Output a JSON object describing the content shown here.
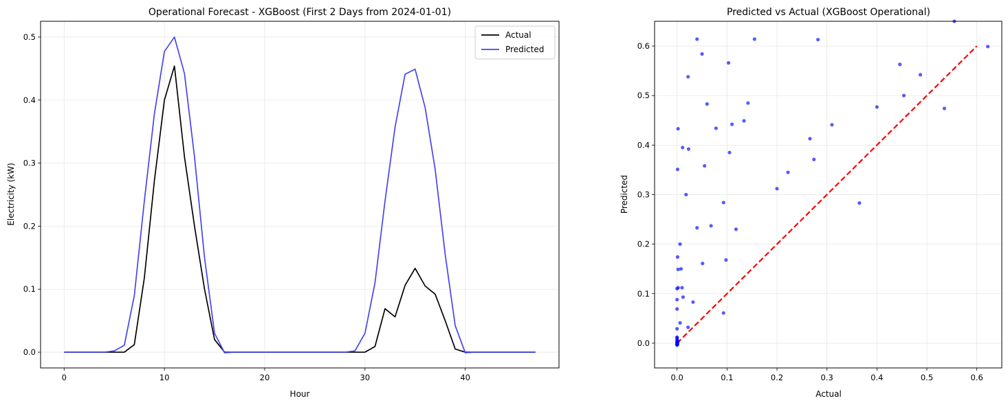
{
  "chart_data": [
    {
      "type": "line",
      "title": "Operational Forecast - XGBoost (First 2 Days from 2024-01-01)",
      "xlabel": "Hour",
      "ylabel": "Electricity (kW)",
      "xlim": [
        -2.35,
        49.35
      ],
      "ylim": [
        -0.025,
        0.525
      ],
      "xticks": [
        0,
        10,
        20,
        30,
        40
      ],
      "yticks": [
        0.0,
        0.1,
        0.2,
        0.3,
        0.4,
        0.5
      ],
      "grid": true,
      "legend": "top-right",
      "x": [
        0,
        1,
        2,
        3,
        4,
        5,
        6,
        7,
        8,
        9,
        10,
        11,
        12,
        13,
        14,
        15,
        16,
        17,
        18,
        19,
        20,
        21,
        22,
        23,
        24,
        25,
        26,
        27,
        28,
        29,
        30,
        31,
        32,
        33,
        34,
        35,
        36,
        37,
        38,
        39,
        40,
        41,
        42,
        43,
        44,
        45,
        46,
        47
      ],
      "series": [
        {
          "name": "Actual",
          "color": "#000000",
          "values": [
            0,
            0,
            0,
            0,
            0,
            0,
            0,
            0.012,
            0.118,
            0.272,
            0.4,
            0.454,
            0.31,
            0.2,
            0.1,
            0.02,
            0,
            0,
            0,
            0,
            0,
            0,
            0,
            0,
            0,
            0,
            0,
            0,
            0,
            0,
            0,
            0.009,
            0.069,
            0.056,
            0.106,
            0.133,
            0.105,
            0.092,
            0.05,
            0.005,
            0,
            0,
            0,
            0,
            0,
            0,
            0,
            0
          ]
        },
        {
          "name": "Predicted",
          "color": "#4444ee",
          "values": [
            0,
            0,
            0,
            0,
            0,
            0.002,
            0.011,
            0.09,
            0.24,
            0.378,
            0.477,
            0.5,
            0.442,
            0.31,
            0.15,
            0.03,
            -0.001,
            0,
            0,
            0,
            0,
            0,
            0,
            0,
            0,
            0,
            0,
            0,
            0,
            0.002,
            0.03,
            0.11,
            0.24,
            0.357,
            0.441,
            0.449,
            0.388,
            0.29,
            0.155,
            0.042,
            -0.001,
            0,
            0,
            0,
            0,
            0,
            0,
            0
          ]
        }
      ]
    },
    {
      "type": "scatter",
      "title": "Predicted vs Actual (XGBoost Operational)",
      "xlabel": "Actual",
      "ylabel": "Predicted",
      "xlim": [
        -0.045,
        0.65
      ],
      "ylim": [
        -0.05,
        0.65
      ],
      "xticks": [
        0.0,
        0.1,
        0.2,
        0.3,
        0.4,
        0.5,
        0.6
      ],
      "yticks": [
        0.0,
        0.1,
        0.2,
        0.3,
        0.4,
        0.5,
        0.6
      ],
      "grid": true,
      "point_color": "#0000ff",
      "reference_line": {
        "x": [
          0,
          0.6
        ],
        "y": [
          0,
          0.6
        ],
        "color": "#ff0000",
        "style": "dashed"
      },
      "points": [
        [
          0.555,
          0.65
        ],
        [
          0.04,
          0.614
        ],
        [
          0.155,
          0.614
        ],
        [
          0.282,
          0.613
        ],
        [
          0.622,
          0.599
        ],
        [
          0.05,
          0.584
        ],
        [
          0.103,
          0.566
        ],
        [
          0.446,
          0.563
        ],
        [
          0.487,
          0.542
        ],
        [
          0.022,
          0.538
        ],
        [
          0.454,
          0.5
        ],
        [
          0.142,
          0.485
        ],
        [
          0.06,
          0.483
        ],
        [
          0.4,
          0.477
        ],
        [
          0.535,
          0.474
        ],
        [
          0.134,
          0.449
        ],
        [
          0.11,
          0.442
        ],
        [
          0.31,
          0.441
        ],
        [
          0.078,
          0.434
        ],
        [
          0.002,
          0.433
        ],
        [
          0.266,
          0.413
        ],
        [
          0.011,
          0.395
        ],
        [
          0.023,
          0.392
        ],
        [
          0.105,
          0.385
        ],
        [
          0.274,
          0.371
        ],
        [
          0.055,
          0.358
        ],
        [
          0.001,
          0.351
        ],
        [
          0.222,
          0.345
        ],
        [
          0.018,
          0.3
        ],
        [
          0.2,
          0.312
        ],
        [
          0.093,
          0.284
        ],
        [
          0.365,
          0.283
        ],
        [
          0.068,
          0.237
        ],
        [
          0.04,
          0.233
        ],
        [
          0.118,
          0.23
        ],
        [
          0.006,
          0.2
        ],
        [
          0.001,
          0.174
        ],
        [
          0.098,
          0.168
        ],
        [
          0.051,
          0.161
        ],
        [
          0.002,
          0.149
        ],
        [
          0.008,
          0.15
        ],
        [
          0.002,
          0.112
        ],
        [
          0.0,
          0.11
        ],
        [
          0.01,
          0.112
        ],
        [
          0.012,
          0.093
        ],
        [
          0.0,
          0.088
        ],
        [
          0.032,
          0.083
        ],
        [
          0.0,
          0.069
        ],
        [
          0.093,
          0.061
        ],
        [
          0.006,
          0.041
        ],
        [
          0.022,
          0.032
        ],
        [
          0.0,
          0.029
        ],
        [
          0.0,
          0.011
        ],
        [
          0.0,
          0.008
        ],
        [
          0.0,
          0.005
        ],
        [
          0.0,
          0.003
        ],
        [
          0.0,
          0.002
        ],
        [
          0.0,
          0.0
        ],
        [
          0.0,
          -0.001
        ],
        [
          0.0,
          -0.002
        ],
        [
          0.0,
          -0.003
        ],
        [
          0.0,
          -0.004
        ],
        [
          0.001,
          0.001
        ],
        [
          0.002,
          0.004
        ],
        [
          0.001,
          -0.002
        ],
        [
          0.0,
          0.012
        ]
      ]
    }
  ]
}
